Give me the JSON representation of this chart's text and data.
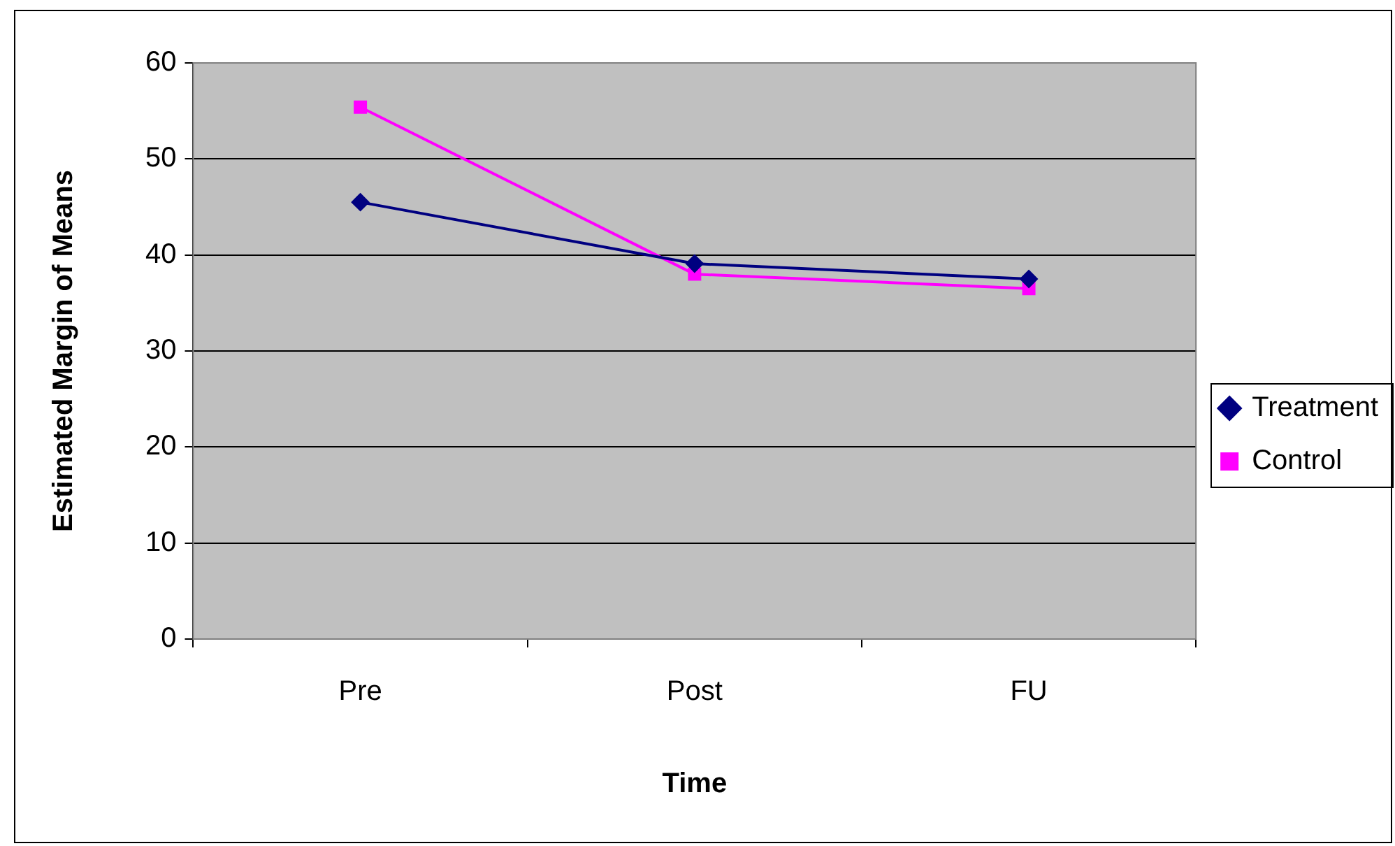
{
  "chart_data": {
    "type": "line",
    "xlabel": "Time",
    "ylabel": "Estimated Margin of Means",
    "categories": [
      "Pre",
      "Post",
      "FU"
    ],
    "series": [
      {
        "name": "Treatment",
        "color": "#000080",
        "values": [
          45.5,
          39.1,
          37.5
        ],
        "marker": "diamond"
      },
      {
        "name": "Control",
        "color": "#ff00ff",
        "values": [
          55.4,
          38.0,
          36.5
        ],
        "marker": "square"
      }
    ],
    "ylim": [
      0,
      60
    ],
    "yticks": [
      0,
      10,
      20,
      30,
      40,
      50,
      60
    ],
    "grid": "y",
    "legend": "right",
    "line_style": "solid"
  }
}
